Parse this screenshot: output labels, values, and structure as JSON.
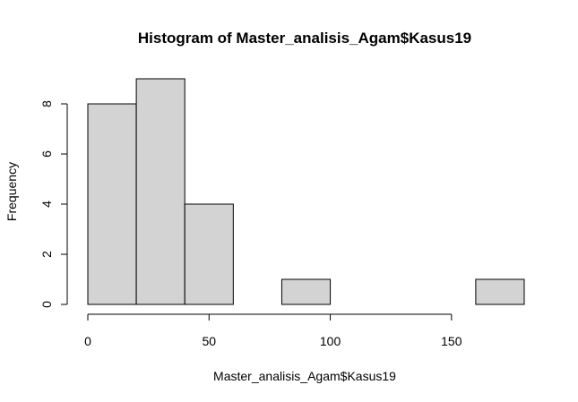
{
  "chart_data": {
    "type": "bar",
    "title": "Histogram of Master_analisis_Agam$Kasus19",
    "xlabel": "Master_analisis_Agam$Kasus19",
    "ylabel": "Frequency",
    "bins": [
      {
        "start": 0,
        "end": 20,
        "count": 8
      },
      {
        "start": 20,
        "end": 40,
        "count": 9
      },
      {
        "start": 40,
        "end": 60,
        "count": 4
      },
      {
        "start": 60,
        "end": 80,
        "count": 0
      },
      {
        "start": 80,
        "end": 100,
        "count": 1
      },
      {
        "start": 100,
        "end": 120,
        "count": 0
      },
      {
        "start": 120,
        "end": 140,
        "count": 0
      },
      {
        "start": 140,
        "end": 160,
        "count": 0
      },
      {
        "start": 160,
        "end": 180,
        "count": 1
      }
    ],
    "xlim": [
      0,
      180
    ],
    "ylim": [
      0,
      9
    ],
    "x_ticks": [
      0,
      50,
      100,
      150
    ],
    "y_ticks": [
      0,
      2,
      4,
      6,
      8
    ],
    "bar_color": "#d3d3d3",
    "grid": false
  }
}
